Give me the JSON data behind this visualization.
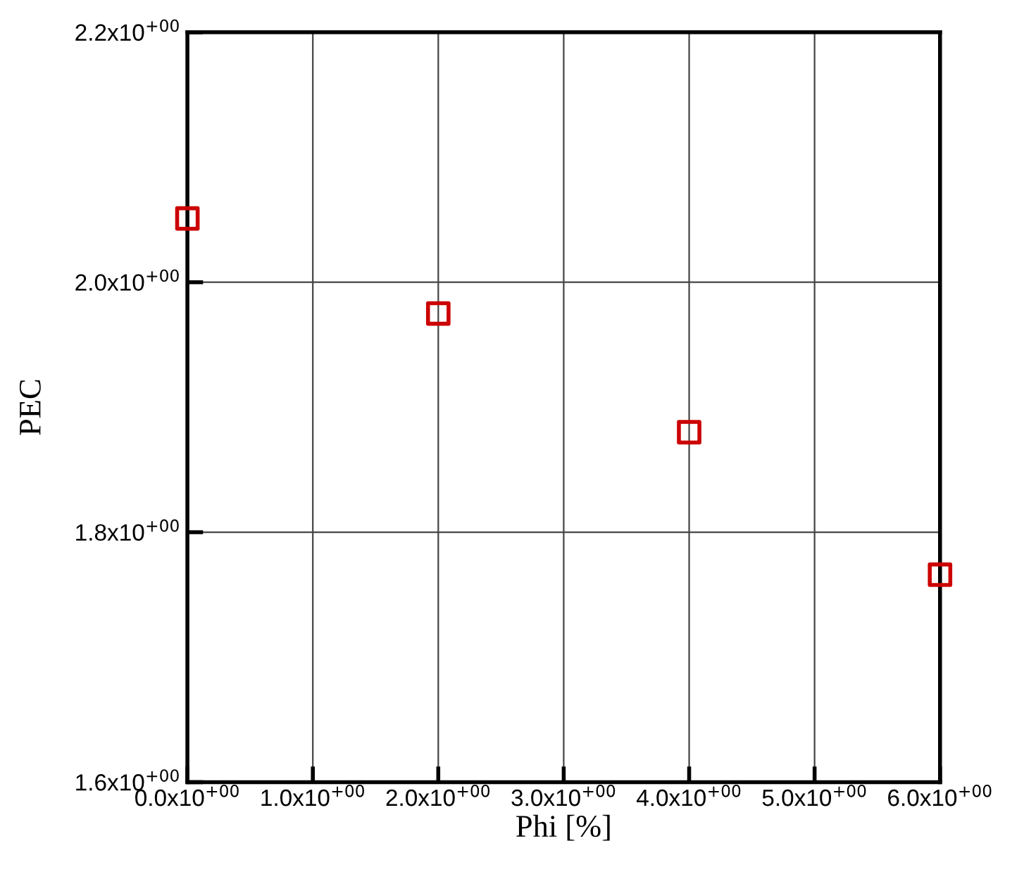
{
  "chart_data": {
    "type": "scatter",
    "xlabel": "Phi [%]",
    "ylabel": "PEC",
    "x": [
      0,
      2,
      4,
      6
    ],
    "series": [
      {
        "color": "#cc0000",
        "values": [
          2.051,
          1.975,
          1.88,
          1.766
        ]
      }
    ],
    "xlim": [
      0,
      6
    ],
    "ylim": [
      1.6,
      2.2
    ],
    "xticks": [
      {
        "value": 0,
        "label": "0.0x10$^{+00}$"
      },
      {
        "value": 1,
        "label": "1.0x10$^{+00}$"
      },
      {
        "value": 2,
        "label": "2.0x10$^{+00}$"
      },
      {
        "value": 3,
        "label": "3.0x10$^{+00}$"
      },
      {
        "value": 4,
        "label": "4.0x10$^{+00}$"
      },
      {
        "value": 5,
        "label": "5.0x10$^{+00}$"
      },
      {
        "value": 6,
        "label": "6.0x10$^{+00}$"
      }
    ],
    "yticks": [
      {
        "value": 1.6,
        "label": "1.6x10$^{+00}$"
      },
      {
        "value": 1.8,
        "label": "1.8x10$^{+00}$"
      },
      {
        "value": 2.0,
        "label": "2.0x10$^{+00}$"
      },
      {
        "value": 2.2,
        "label": "2.2x10$^{+00}$"
      }
    ],
    "grid": true,
    "marker": "square"
  }
}
